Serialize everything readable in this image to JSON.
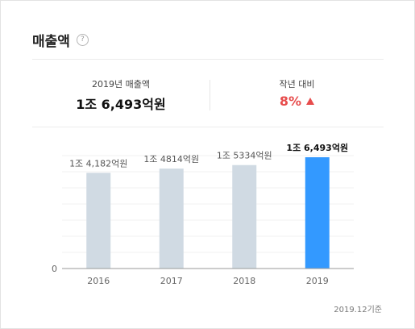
{
  "header": {
    "title": "매출액",
    "help_icon": "?"
  },
  "summary": {
    "left_label": "2019년 매출액",
    "left_value": "1조 6,493억원",
    "right_label": "작년 대비",
    "right_value": "8%",
    "right_color": "#e74c4c",
    "trend_icon": "triangle-up-icon"
  },
  "chart_data": {
    "type": "bar",
    "categories": [
      "2016",
      "2017",
      "2018",
      "2019"
    ],
    "values": [
      14182,
      14814,
      15334,
      16493
    ],
    "value_labels": [
      "1조 4,182억원",
      "1조 4814억원",
      "1조 5334억원",
      "1조 6,493억원"
    ],
    "highlight_index": 3,
    "bar_color": "#d0dae3",
    "highlight_color": "#3399ff",
    "ylim": [
      0,
      16493
    ],
    "y_tick_label": "0",
    "grid": true,
    "legend": "none"
  },
  "footnote": "2019.12기준"
}
